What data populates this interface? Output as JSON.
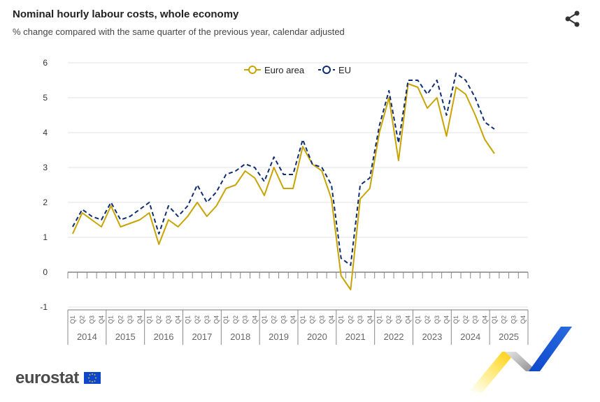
{
  "header": {
    "title": "Nominal hourly labour costs, whole economy",
    "subtitle": "% change compared with the same quarter of the previous year, calendar adjusted",
    "share_icon": "share-icon"
  },
  "branding": {
    "logo_text": "eurostat",
    "flag_icon": "eu-flag-icon"
  },
  "colors": {
    "euro_area": "#c9a400",
    "eu": "#0e2d73",
    "grid": "#e3e3e3"
  },
  "chart_data": {
    "type": "line",
    "title": "Nominal hourly labour costs, whole economy",
    "subtitle": "% change compared with the same quarter of the previous year, calendar adjusted",
    "legend_position": "top-center",
    "grid": true,
    "ylim": [
      -1,
      6
    ],
    "yticks": [
      "6",
      "5",
      "4",
      "3",
      "2",
      "1",
      "0",
      "-1"
    ],
    "quarter_labels": [
      "Q1",
      "Q2",
      "Q3",
      "Q4"
    ],
    "years": [
      "2014",
      "2015",
      "2016",
      "2017",
      "2018",
      "2019",
      "2020",
      "2021",
      "2022",
      "2023",
      "2024",
      "2025"
    ],
    "series": [
      {
        "name": "Euro area",
        "style": "solid",
        "values": [
          1.1,
          1.7,
          1.5,
          1.3,
          1.9,
          1.3,
          1.4,
          1.5,
          1.7,
          0.8,
          1.5,
          1.3,
          1.6,
          2.0,
          1.6,
          1.9,
          2.4,
          2.5,
          2.9,
          2.7,
          2.2,
          3.0,
          2.4,
          2.4,
          3.6,
          3.1,
          2.9,
          2.1,
          -0.1,
          -0.5,
          2.1,
          2.4,
          4.0,
          5.0,
          3.2,
          5.4,
          5.3,
          4.7,
          5.0,
          3.9,
          5.3,
          5.1,
          4.5,
          3.8,
          3.4
        ]
      },
      {
        "name": "EU",
        "style": "dashed",
        "values": [
          1.3,
          1.8,
          1.6,
          1.5,
          2.0,
          1.5,
          1.6,
          1.8,
          2.0,
          1.1,
          1.9,
          1.6,
          1.9,
          2.5,
          2.0,
          2.3,
          2.8,
          2.9,
          3.1,
          3.0,
          2.6,
          3.3,
          2.8,
          2.8,
          3.8,
          3.1,
          3.0,
          2.5,
          0.4,
          0.2,
          2.5,
          2.7,
          4.2,
          5.2,
          3.7,
          5.5,
          5.5,
          5.1,
          5.5,
          4.5,
          5.7,
          5.5,
          5.0,
          4.3,
          4.1
        ]
      }
    ]
  }
}
